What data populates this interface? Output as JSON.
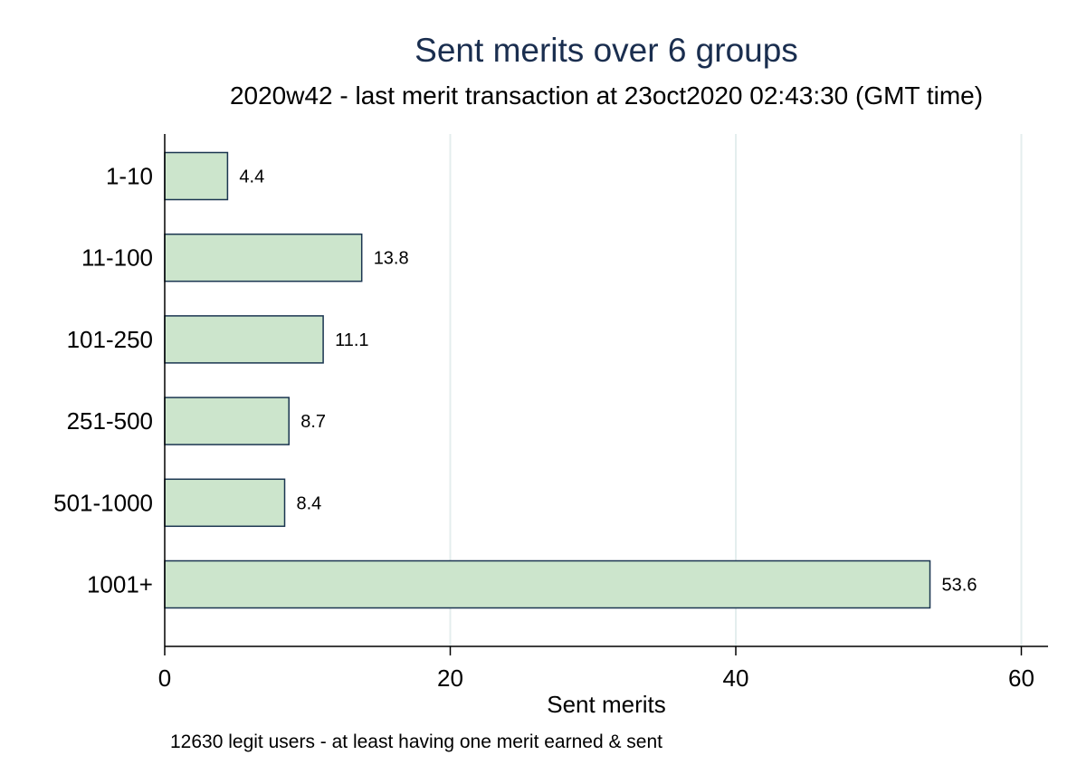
{
  "colors": {
    "bar_fill": "#cce5cc",
    "bar_stroke": "#1a3550",
    "gridline": "#e4eeee",
    "axis": "#000000",
    "title": "#1a2e4f"
  },
  "chart_data": {
    "type": "bar",
    "orientation": "horizontal",
    "title": "Sent merits over 6 groups",
    "subtitle": "2020w42 - last merit transaction at 23oct2020 02:43:30 (GMT time)",
    "categories": [
      "1-10",
      "11-100",
      "101-250",
      "251-500",
      "501-1000",
      "1001+"
    ],
    "values": [
      4.4,
      13.8,
      11.1,
      8.7,
      8.4,
      53.6
    ],
    "value_labels": [
      "4.4",
      "13.8",
      "11.1",
      "8.7",
      "8.4",
      "53.6"
    ],
    "xlabel": "Sent merits",
    "xlim": [
      0,
      62
    ],
    "xticks": [
      0,
      20,
      40,
      60
    ],
    "xtick_labels": [
      "0",
      "20",
      "40",
      "60"
    ],
    "grid": true,
    "note": "12630 legit users - at least having one merit earned & sent"
  }
}
